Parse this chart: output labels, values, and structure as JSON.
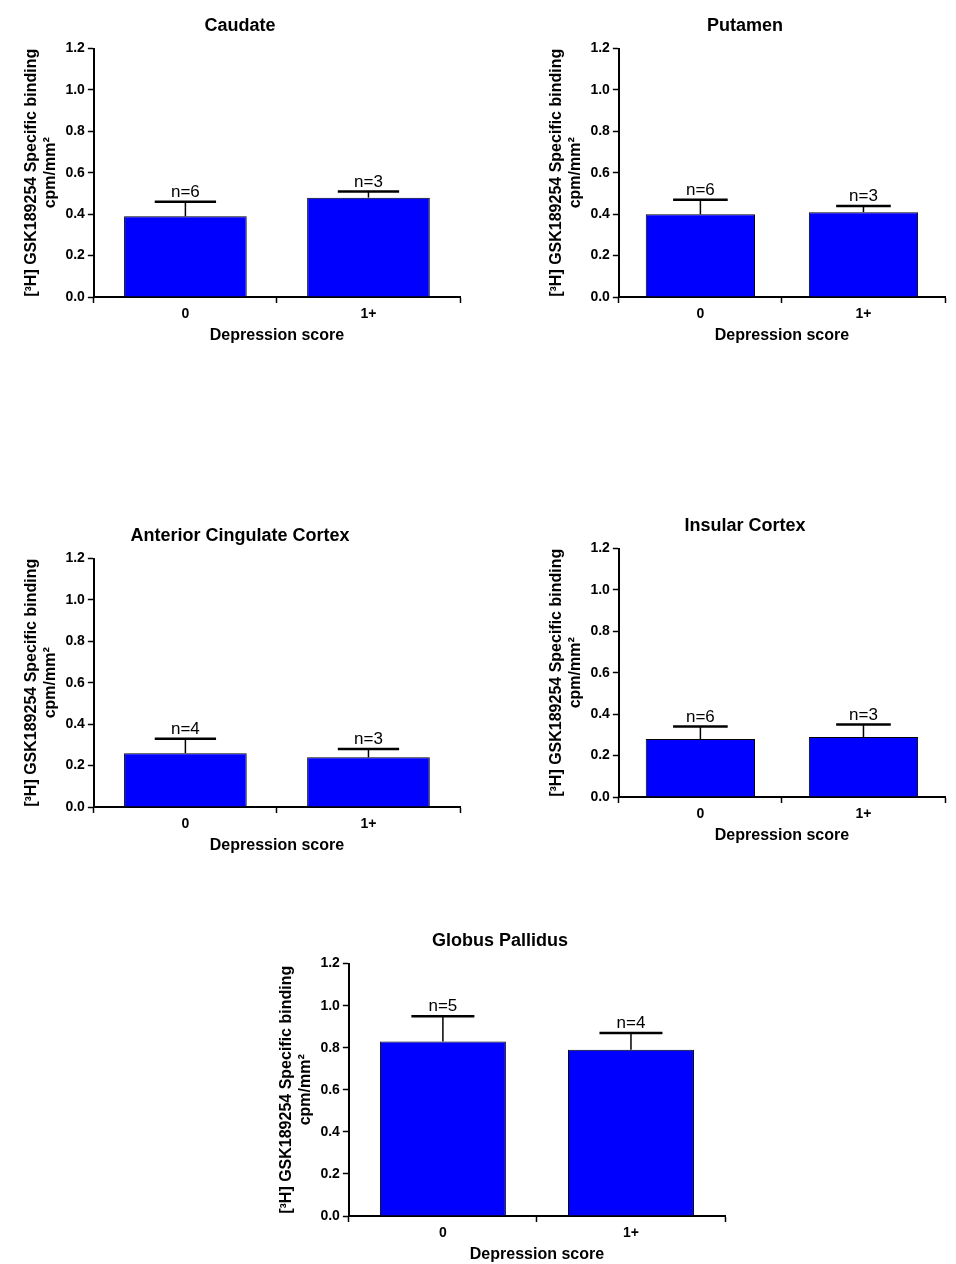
{
  "chart_data": [
    {
      "type": "bar",
      "title": "Caudate",
      "xlabel": "Depression score",
      "ylabel": "[³H] GSK189254 Specific binding\ncpm/mm²",
      "categories": [
        "0",
        "1+"
      ],
      "values": [
        0.39,
        0.48
      ],
      "errors": [
        [
          0.39,
          0.46
        ],
        [
          0.48,
          0.51
        ]
      ],
      "color": "#0000ff",
      "ylim": [
        0,
        1.2
      ],
      "yticks": [
        {
          "value": 0,
          "label": "0.0"
        },
        {
          "value": 0.2,
          "label": "0.2"
        },
        {
          "value": 0.4,
          "label": "0.4"
        },
        {
          "value": 0.6,
          "label": "0.6"
        },
        {
          "value": 0.8,
          "label": "0.8"
        },
        {
          "value": 1,
          "label": "1.0"
        },
        {
          "value": 1.2,
          "label": "1.2"
        }
      ],
      "grid": false,
      "legend": false,
      "annotations": [
        "n=6",
        "n=3"
      ]
    },
    {
      "type": "bar",
      "title": "Putamen",
      "xlabel": "Depression score",
      "ylabel": "[³H] GSK189254 Specific binding\ncpm/mm²",
      "categories": [
        "0",
        "1+"
      ],
      "values": [
        0.4,
        0.41
      ],
      "errors": [
        [
          0.4,
          0.47
        ],
        [
          0.41,
          0.44
        ]
      ],
      "color": "#0000ff",
      "ylim": [
        0,
        1.2
      ],
      "yticks": [
        {
          "value": 0,
          "label": "0.0"
        },
        {
          "value": 0.2,
          "label": "0.2"
        },
        {
          "value": 0.4,
          "label": "0.4"
        },
        {
          "value": 0.6,
          "label": "0.6"
        },
        {
          "value": 0.8,
          "label": "0.8"
        },
        {
          "value": 1,
          "label": "1.0"
        },
        {
          "value": 1.2,
          "label": "1.2"
        }
      ],
      "grid": false,
      "legend": false,
      "annotations": [
        "n=6",
        "n=3"
      ]
    },
    {
      "type": "bar",
      "title": "Anterior Cingulate Cortex",
      "xlabel": "Depression score",
      "ylabel": "[³H] GSK189254 Specific binding\ncpm/mm²",
      "categories": [
        "0",
        "1+"
      ],
      "values": [
        0.26,
        0.24
      ],
      "errors": [
        [
          0.26,
          0.33
        ],
        [
          0.24,
          0.28
        ]
      ],
      "color": "#0000ff",
      "ylim": [
        0,
        1.2
      ],
      "yticks": [
        {
          "value": 0,
          "label": "0.0"
        },
        {
          "value": 0.2,
          "label": "0.2"
        },
        {
          "value": 0.4,
          "label": "0.4"
        },
        {
          "value": 0.6,
          "label": "0.6"
        },
        {
          "value": 0.8,
          "label": "0.8"
        },
        {
          "value": 1,
          "label": "1.0"
        },
        {
          "value": 1.2,
          "label": "1.2"
        }
      ],
      "grid": false,
      "legend": false,
      "annotations": [
        "n=4",
        "n=3"
      ]
    },
    {
      "type": "bar",
      "title": "Insular Cortex",
      "xlabel": "Depression score",
      "ylabel": "[³H] GSK189254 Specific binding\ncpm/mm²",
      "categories": [
        "0",
        "1+"
      ],
      "values": [
        0.28,
        0.29
      ],
      "errors": [
        [
          0.28,
          0.34
        ],
        [
          0.29,
          0.35
        ]
      ],
      "color": "#0000ff",
      "ylim": [
        0,
        1.2
      ],
      "yticks": [
        {
          "value": 0,
          "label": "0.0"
        },
        {
          "value": 0.2,
          "label": "0.2"
        },
        {
          "value": 0.4,
          "label": "0.4"
        },
        {
          "value": 0.6,
          "label": "0.6"
        },
        {
          "value": 0.8,
          "label": "0.8"
        },
        {
          "value": 1,
          "label": "1.0"
        },
        {
          "value": 1.2,
          "label": "1.2"
        }
      ],
      "grid": false,
      "legend": false,
      "annotations": [
        "n=6",
        "n=3"
      ]
    },
    {
      "type": "bar",
      "title": "Globus Pallidus",
      "xlabel": "Depression score",
      "ylabel": "[³H] GSK189254 Specific binding\ncpm/mm²",
      "categories": [
        "0",
        "1+"
      ],
      "values": [
        0.83,
        0.79
      ],
      "errors": [
        [
          0.83,
          0.95
        ],
        [
          0.79,
          0.87
        ]
      ],
      "color": "#0000ff",
      "ylim": [
        0,
        1.2
      ],
      "yticks": [
        {
          "value": 0,
          "label": "0.0"
        },
        {
          "value": 0.2,
          "label": "0.2"
        },
        {
          "value": 0.4,
          "label": "0.4"
        },
        {
          "value": 0.6,
          "label": "0.6"
        },
        {
          "value": 0.8,
          "label": "0.8"
        },
        {
          "value": 1,
          "label": "1.0"
        },
        {
          "value": 1.2,
          "label": "1.2"
        }
      ],
      "grid": false,
      "legend": false,
      "annotations": [
        "n=5",
        "n=4"
      ]
    }
  ]
}
